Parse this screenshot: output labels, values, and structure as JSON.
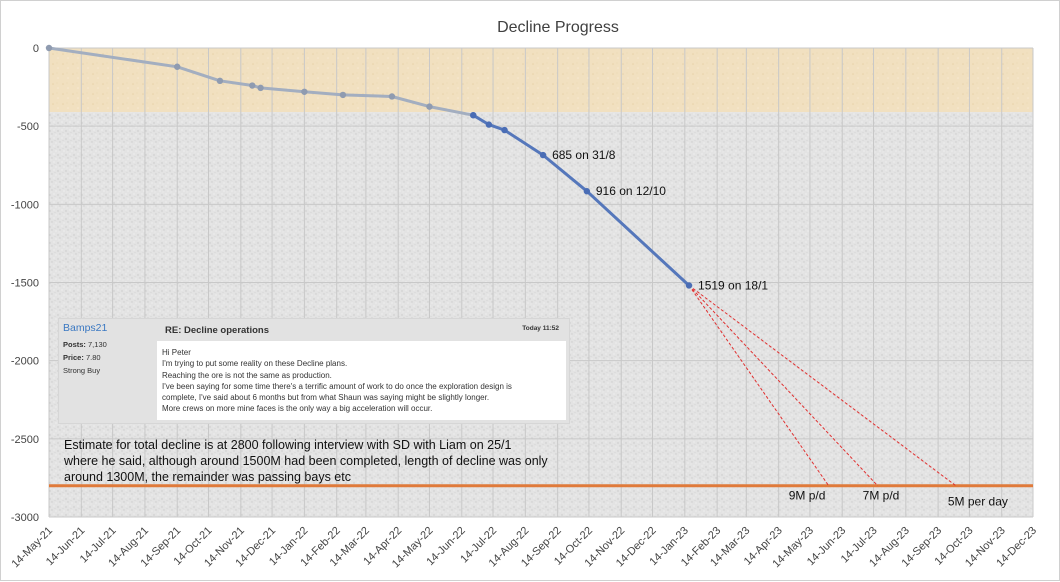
{
  "chart_data": {
    "type": "line",
    "title": "Decline Progress",
    "xlabel": "",
    "ylabel": "",
    "x_tick_labels": [
      "14-May-21",
      "14-Jun-21",
      "14-Jul-21",
      "14-Aug-21",
      "14-Sep-21",
      "14-Oct-21",
      "14-Nov-21",
      "14-Dec-21",
      "14-Jan-22",
      "14-Feb-22",
      "14-Mar-22",
      "14-Apr-22",
      "14-May-22",
      "14-Jun-22",
      "14-Jul-22",
      "14-Aug-22",
      "14-Sep-22",
      "14-Oct-22",
      "14-Nov-22",
      "14-Dec-22",
      "14-Jan-23",
      "14-Feb-23",
      "14-Mar-23",
      "14-Apr-23",
      "14-May-23",
      "14-Jun-23",
      "14-Jul-23",
      "14-Aug-23",
      "14-Sep-23",
      "14-Oct-23",
      "14-Nov-23",
      "14-Dec-23"
    ],
    "xlim": [
      "14-May-21",
      "14-Dec-23"
    ],
    "y_tick_labels": [
      "0",
      "-500",
      "-1000",
      "-1500",
      "-2000",
      "-2500",
      "-3000"
    ],
    "ylim": [
      -3000,
      0
    ],
    "grid": true,
    "bands": [
      {
        "name": "",
        "from": 0,
        "to": -410,
        "color": "#f2e2c4"
      },
      {
        "name": "",
        "from": -410,
        "to": -3000,
        "color": "#e4e4e4"
      }
    ],
    "series": [
      {
        "name": "",
        "color": "#a3aec0",
        "points": [
          {
            "x": "2021-05-14",
            "y": 0
          },
          {
            "x": "2021-09-14",
            "y": -120
          },
          {
            "x": "2021-10-25",
            "y": -210
          },
          {
            "x": "2021-11-25",
            "y": -240
          },
          {
            "x": "2021-12-03",
            "y": -255
          },
          {
            "x": "2022-01-14",
            "y": -280
          },
          {
            "x": "2022-02-20",
            "y": -300
          },
          {
            "x": "2022-04-08",
            "y": -310
          },
          {
            "x": "2022-05-14",
            "y": -375
          },
          {
            "x": "2022-06-25",
            "y": -430
          }
        ]
      },
      {
        "name": "",
        "color": "#5577bb",
        "points": [
          {
            "x": "2022-06-25",
            "y": -430
          },
          {
            "x": "2022-07-10",
            "y": -490
          },
          {
            "x": "2022-07-25",
            "y": -525
          },
          {
            "x": "2022-08-31",
            "y": -685
          },
          {
            "x": "2022-10-12",
            "y": -916
          },
          {
            "x": "2023-01-18",
            "y": -1519
          }
        ]
      }
    ],
    "reference_line": {
      "y": -2800,
      "color": "#e07a3a"
    },
    "projections": [
      {
        "label": "9M p/d",
        "from": {
          "x": "2023-01-18",
          "y": -1519
        },
        "to": {
          "x": "2023-06-01",
          "y": -2800
        }
      },
      {
        "label": "7M p/d",
        "from": {
          "x": "2023-01-18",
          "y": -1519
        },
        "to": {
          "x": "2023-07-18",
          "y": -2800
        }
      },
      {
        "label": "5M per day",
        "from": {
          "x": "2023-01-18",
          "y": -1519
        },
        "to": {
          "x": "2023-10-01",
          "y": -2800
        }
      }
    ],
    "annotations": [
      {
        "text": "685 on 31/8",
        "x": "2022-08-31",
        "y": -685
      },
      {
        "text": "916 on 12/10",
        "x": "2022-10-12",
        "y": -916
      },
      {
        "text": "1519 on 18/1",
        "x": "2023-01-18",
        "y": -1519
      }
    ],
    "estimate_note": [
      "Estimate for total decline is at 2800 following interview with SD with Liam on 25/1",
      "where he said, although around 1500M had been completed, length of decline was only",
      "around 1300M, the remainder was passing bays etc"
    ]
  },
  "forum_post": {
    "username": "Bamps21",
    "posts_label": "Posts:",
    "posts_value": "7,130",
    "price_label": "Price:",
    "price_value": "7.80",
    "sentiment": "Strong Buy",
    "subject": "RE: Decline operations",
    "date": "Today 11:52",
    "body": [
      "Hi Peter",
      "I'm trying to put some reality on these Decline plans.",
      "Reaching the ore is not the same as production.",
      "I've been saying for some time there's a terrific amount of work to do once the exploration design is",
      "complete, I've said about 6 months but from what Shaun was saying might be slightly longer.",
      "More crews on more mine faces is the only way a big acceleration will occur."
    ]
  }
}
